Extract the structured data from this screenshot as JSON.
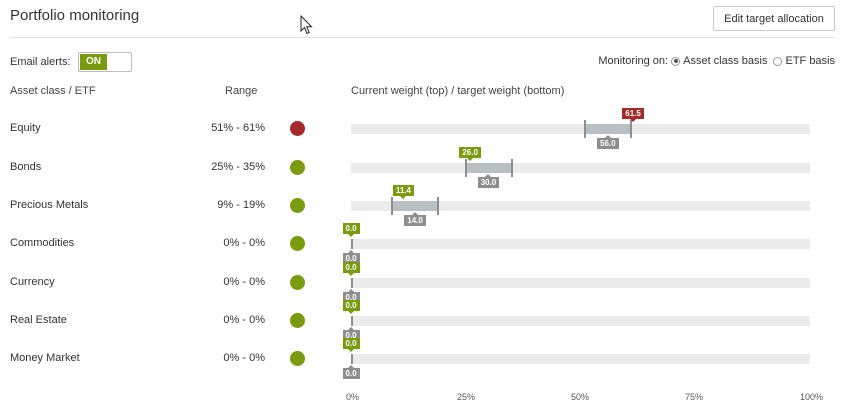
{
  "header": {
    "title": "Portfolio monitoring",
    "edit_button": "Edit target allocation"
  },
  "controls": {
    "email_alerts_label": "Email alerts:",
    "toggle_state": "ON",
    "monitoring_label": "Monitoring on:",
    "option_asset": "Asset class basis",
    "option_etf": "ETF basis"
  },
  "columns": {
    "asset": "Asset class / ETF",
    "range": "Range",
    "weights": "Current weight (top) / target weight (bottom)"
  },
  "colors": {
    "alert_red": "#a52a2a",
    "ok_green": "#7a9a0f",
    "target_gray": "#8e8e8e"
  },
  "rows": [
    {
      "name": "Equity",
      "range": "51% - 61%",
      "status": "red",
      "range_min": 51,
      "range_max": 61,
      "current": 61.5,
      "current_label": "61.5",
      "target": 56.0,
      "target_label": "56.0"
    },
    {
      "name": "Bonds",
      "range": "25% - 35%",
      "status": "green",
      "range_min": 25,
      "range_max": 35,
      "current": 26.0,
      "current_label": "26.0",
      "target": 30.0,
      "target_label": "30.0"
    },
    {
      "name": "Precious Metals",
      "range": "9% - 19%",
      "status": "green",
      "range_min": 9,
      "range_max": 19,
      "current": 11.4,
      "current_label": "11.4",
      "target": 14.0,
      "target_label": "14.0"
    },
    {
      "name": "Commodities",
      "range": "0% - 0%",
      "status": "green",
      "range_min": 0,
      "range_max": 0,
      "current": 0,
      "current_label": "0.0",
      "target": 0,
      "target_label": "0.0"
    },
    {
      "name": "Currency",
      "range": "0% - 0%",
      "status": "green",
      "range_min": 0,
      "range_max": 0,
      "current": 0,
      "current_label": "0.0",
      "target": 0,
      "target_label": "0.0"
    },
    {
      "name": "Real Estate",
      "range": "0% - 0%",
      "status": "green",
      "range_min": 0,
      "range_max": 0,
      "current": 0,
      "current_label": "0.0",
      "target": 0,
      "target_label": "0.0"
    },
    {
      "name": "Money Market",
      "range": "0% - 0%",
      "status": "green",
      "range_min": 0,
      "range_max": 0,
      "current": 0,
      "current_label": "0.0",
      "target": 0,
      "target_label": "0.0"
    }
  ],
  "axis": {
    "ticks": [
      "0%",
      "25%",
      "50%",
      "75%",
      "100%"
    ]
  }
}
